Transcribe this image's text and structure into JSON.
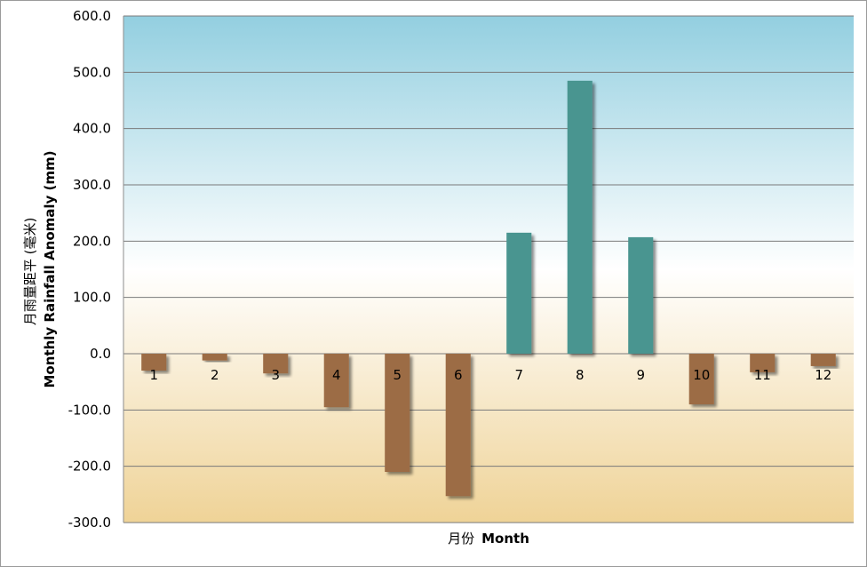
{
  "chart_data": {
    "type": "bar",
    "categories": [
      "1",
      "2",
      "3",
      "4",
      "5",
      "6",
      "7",
      "8",
      "9",
      "10",
      "11",
      "12"
    ],
    "values": [
      -30,
      -12,
      -35,
      -95,
      -210,
      -253,
      215,
      485,
      207,
      -90,
      -33,
      -22
    ],
    "xlabel_zh": "月份",
    "xlabel_en": "Month",
    "ylabel_zh": "月雨量距平 (毫米)",
    "ylabel_en": "Monthly Rainfall Anomaly (mm)",
    "ylim": [
      -300,
      600
    ],
    "yticks": [
      "600.0",
      "500.0",
      "400.0",
      "300.0",
      "200.0",
      "100.0",
      "0.0",
      "-100.0",
      "-200.0",
      "-300.0"
    ],
    "grid": true,
    "colors": {
      "positive": "#4a9590",
      "negative": "#9c6c44",
      "background_top": "#93cfe0",
      "background_mid": "#ffffff",
      "background_bottom": "#efd397"
    }
  }
}
